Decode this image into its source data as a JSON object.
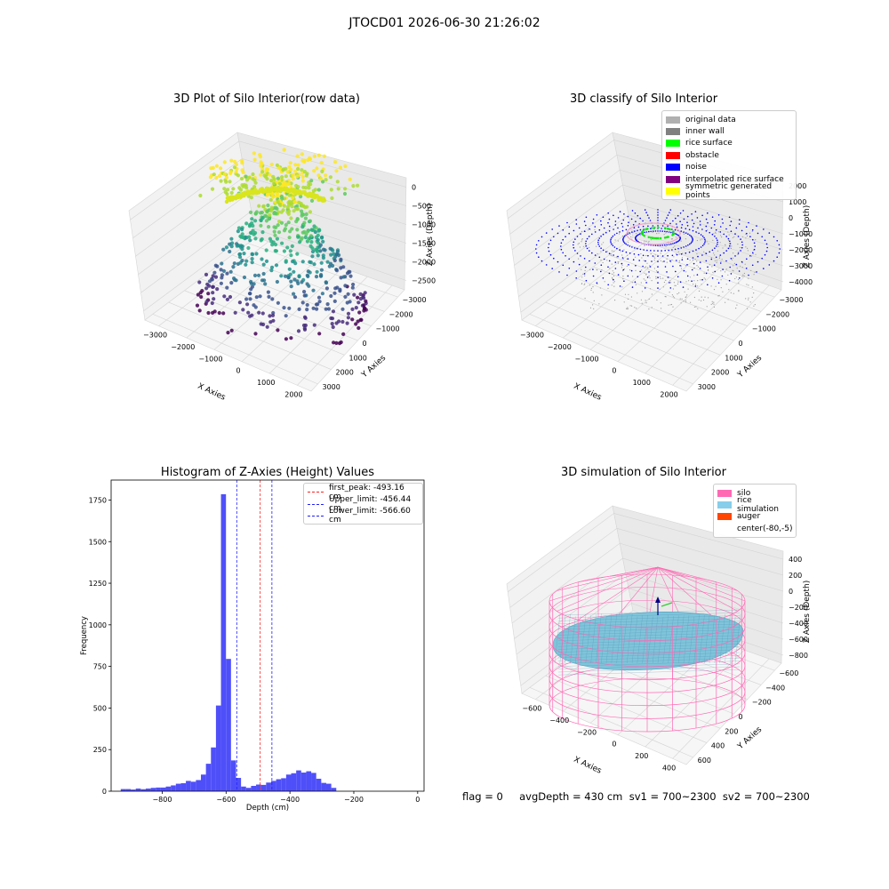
{
  "figure": {
    "suptitle": "JTOCD01 2026-06-30 21:26:02"
  },
  "chart_data": [
    {
      "type": "scatter",
      "title": "3D Plot of Silo Interior(row data)",
      "xlabel": "X Axies",
      "ylabel": "Y Axies",
      "zlabel": "Z Axies (Depth)",
      "x_ticks": [
        "−3000",
        "−2000",
        "−1000",
        "0",
        "1000",
        "2000"
      ],
      "y_ticks": [
        "−3000",
        "−2000",
        "−1000",
        "0",
        "1000",
        "2000",
        "3000"
      ],
      "z_ticks": [
        "−2500",
        "−2000",
        "−1500",
        "−1000",
        "−500",
        "0"
      ],
      "xlim": [
        -3500,
        2600
      ],
      "ylim": [
        -3300,
        3300
      ],
      "zlim": [
        -2800,
        100
      ],
      "colormap": "viridis",
      "colors": {
        "low": "#440154",
        "mid": "#21918c",
        "high": "#fde725"
      }
    },
    {
      "type": "scatter",
      "title": "3D classify of Silo Interior",
      "xlabel": "X Axies",
      "ylabel": "Y Axies",
      "zlabel": "Z Axies (Depth)",
      "x_ticks": [
        "−3000",
        "−2000",
        "−1000",
        "0",
        "1000",
        "2000"
      ],
      "y_ticks": [
        "−3000",
        "−2000",
        "−1000",
        "0",
        "1000",
        "2000",
        "3000"
      ],
      "z_ticks": [
        "−4000",
        "−3000",
        "−2000",
        "−1000",
        "0",
        "1000",
        "2000"
      ],
      "xlim": [
        -3500,
        2600
      ],
      "ylim": [
        -3300,
        3300
      ],
      "zlim": [
        -4300,
        2300
      ],
      "legend": [
        {
          "label": "original data",
          "color": "#b0b0b0"
        },
        {
          "label": "inner wall",
          "color": "#808080"
        },
        {
          "label": "rice surface",
          "color": "#00ff00"
        },
        {
          "label": "obstacle",
          "color": "#ff0000"
        },
        {
          "label": "noise",
          "color": "#0000ff"
        },
        {
          "label": "interpolated rice surface",
          "color": "#800080"
        },
        {
          "label": "symmetric generated points",
          "color": "#ffff00"
        }
      ],
      "legend_position": "upper-right"
    },
    {
      "type": "bar",
      "title": "Histogram of Z-Axies (Height) Values",
      "xlabel": "Depth (cm)",
      "ylabel": "Frequency",
      "xlim": [
        -960,
        20
      ],
      "ylim": [
        0,
        1870
      ],
      "x_ticks": [
        -800,
        -600,
        -400,
        -200,
        0
      ],
      "x_tick_labels": [
        "−800",
        "−600",
        "−400",
        "−200",
        "0"
      ],
      "y_ticks": [
        0,
        250,
        500,
        750,
        1000,
        1250,
        1500,
        1750
      ],
      "bin_start": -930,
      "bin_width": 15.7,
      "values": [
        13,
        13,
        10,
        16,
        12,
        16,
        20,
        22,
        22,
        28,
        35,
        45,
        48,
        62,
        57,
        67,
        100,
        165,
        263,
        515,
        1785,
        795,
        185,
        80,
        28,
        20,
        32,
        40,
        38,
        52,
        62,
        72,
        78,
        100,
        108,
        125,
        112,
        120,
        110,
        75,
        50,
        45,
        20
      ],
      "bar_color": "#4f4ff9",
      "vlines": [
        {
          "x": -493.16,
          "label": "first_peak: -493.16 cm",
          "color": "#ff2020"
        },
        {
          "x": -456.44,
          "label": "Upper_limit: -456.44 cm",
          "color": "#2020ff"
        },
        {
          "x": -566.6,
          "label": "Lower_limit: -566.60 cm",
          "color": "#2020ff"
        }
      ],
      "legend_position": "upper-right"
    },
    {
      "type": "scatter",
      "title": "3D simulation of Silo Interior",
      "xlabel": "X Axies",
      "ylabel": "Y Axies",
      "zlabel": "Z Axies (Depth)",
      "x_ticks": [
        "−600",
        "−400",
        "−200",
        "0",
        "200",
        "400"
      ],
      "y_ticks": [
        "−600",
        "−400",
        "−200",
        "0",
        "200",
        "400",
        "600"
      ],
      "z_ticks": [
        "−800",
        "−600",
        "−400",
        "−200",
        "0",
        "200",
        "400"
      ],
      "xlim": [
        -700,
        500
      ],
      "ylim": [
        -650,
        650
      ],
      "zlim": [
        -900,
        500
      ],
      "legend": [
        {
          "label": "silo",
          "color": "#ff69b4"
        },
        {
          "label": "rice simulation",
          "color": "#87ceeb"
        },
        {
          "label": "auger",
          "color": "#ff4500"
        },
        {
          "label": "center(-80,-5)",
          "color": ""
        }
      ],
      "legend_position": "upper-right"
    }
  ],
  "status": {
    "text": "flag = 0     avgDepth = 430 cm  sv1 = 700~2300  sv2 = 700~2300"
  }
}
